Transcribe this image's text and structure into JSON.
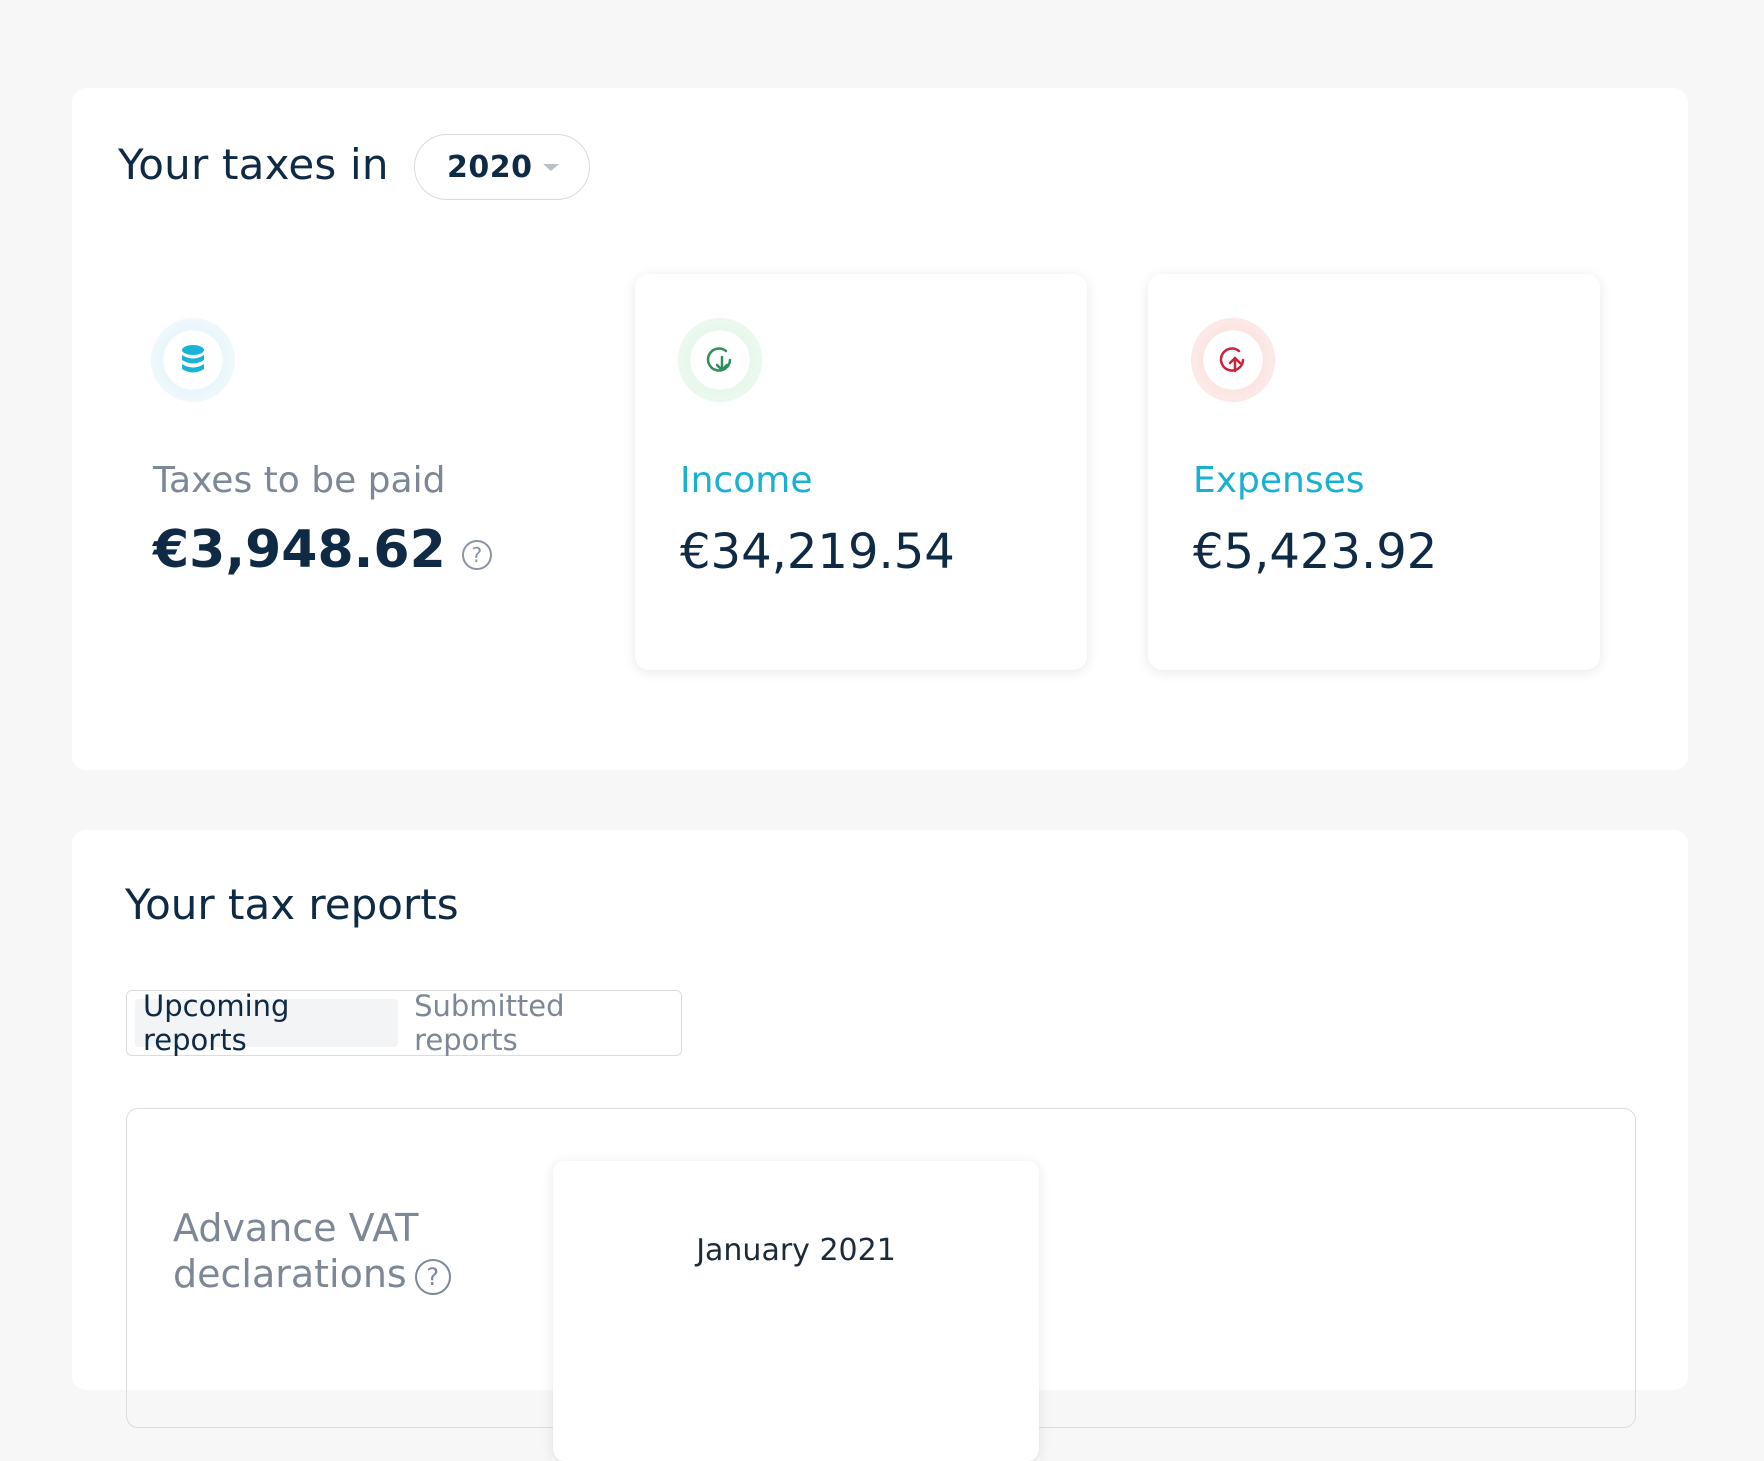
{
  "taxes": {
    "title": "Your taxes in",
    "year": "2020",
    "cards": [
      {
        "icon": "coins-stack-icon",
        "label": "Taxes to be paid",
        "amount": "€3,948.62",
        "help": "?"
      },
      {
        "icon": "income-arrow-down-icon",
        "label": "Income",
        "amount": "€34,219.54"
      },
      {
        "icon": "expenses-arrow-up-icon",
        "label": "Expenses",
        "amount": "€5,423.92"
      }
    ]
  },
  "reports": {
    "title": "Your tax reports",
    "tabs": [
      {
        "label": "Upcoming reports",
        "active": true
      },
      {
        "label": "Submitted reports",
        "active": false
      }
    ],
    "vat": {
      "label_line1": "Advance VAT",
      "label_line2": "declarations",
      "help": "?",
      "month": "January 2021"
    }
  },
  "colors": {
    "navy": "#0f2a44",
    "teal": "#1ab0d1",
    "gray": "#7d8796",
    "green": "#2f8f5b",
    "red": "#c8243b"
  }
}
